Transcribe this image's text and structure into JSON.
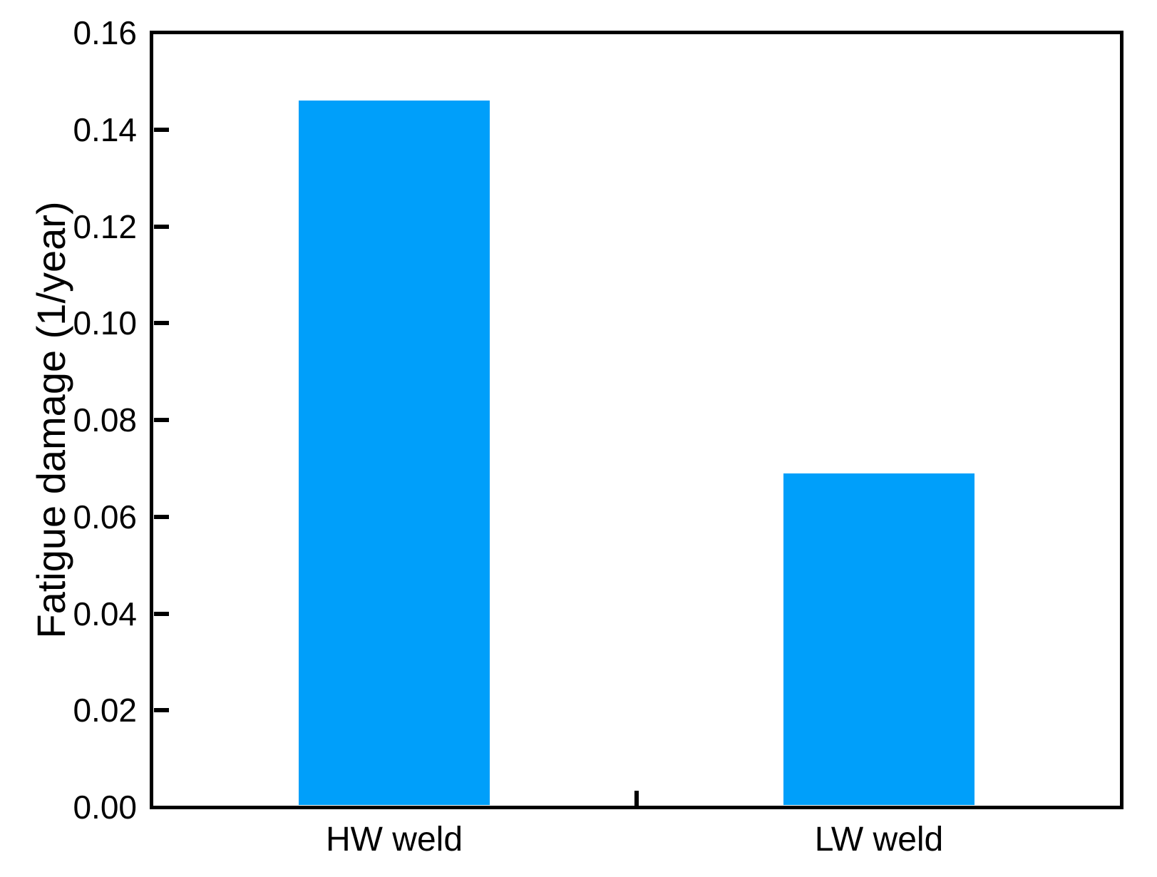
{
  "chart_data": {
    "type": "bar",
    "categories": [
      "HW weld",
      "LW weld"
    ],
    "values": [
      0.146,
      0.069
    ],
    "title": "",
    "xlabel": "",
    "ylabel": "Fatigue damage (1/year)",
    "ylim": [
      0,
      0.16
    ],
    "yticks": [
      0.0,
      0.02,
      0.04,
      0.06,
      0.08,
      0.1,
      0.12,
      0.14,
      0.16
    ],
    "ytick_labels": [
      "0.00",
      "0.02",
      "0.04",
      "0.06",
      "0.08",
      "0.10",
      "0.12",
      "0.14",
      "0.16"
    ],
    "grid": "off",
    "legend": "none",
    "bar_color": "#009FFA",
    "axis_color": "#000000",
    "background_color": "#FFFFFF"
  }
}
